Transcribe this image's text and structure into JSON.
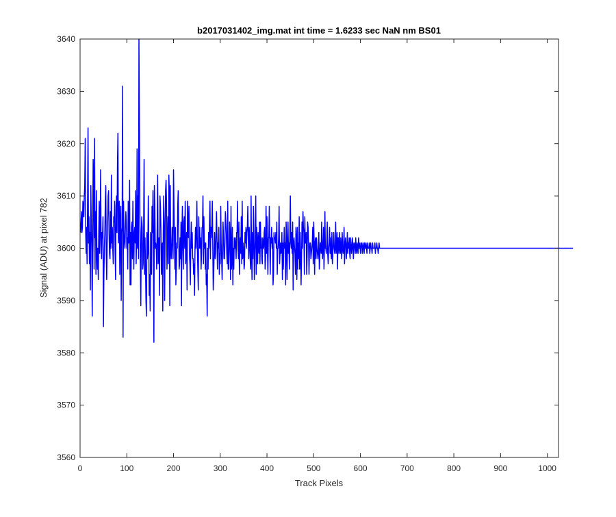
{
  "chart_data": {
    "type": "line",
    "title": "b2017031402_img.mat int time = 1.6233 sec  NaN nm BS01",
    "xlabel": "Track Pixels",
    "ylabel": "Signal (ADU) at pixel 782",
    "xlim": [
      0,
      1024
    ],
    "ylim": [
      3560,
      3640
    ],
    "xticks": [
      0,
      100,
      200,
      300,
      400,
      500,
      600,
      700,
      800,
      900,
      1000
    ],
    "yticks": [
      3560,
      3570,
      3580,
      3590,
      3600,
      3610,
      3620,
      3630,
      3640
    ],
    "grid": false,
    "legend": null,
    "series": [
      {
        "color": "#0000ff",
        "x_start": 1,
        "x_step": 1,
        "values": [
          3603,
          3605,
          3607,
          3603,
          3604,
          3609,
          3608,
          3606,
          3610,
          3612,
          3621,
          3603,
          3599,
          3604,
          3597,
          3608,
          3623,
          3601,
          3606,
          3597,
          3603,
          3592,
          3612,
          3605,
          3600,
          3587,
          3603,
          3617,
          3611,
          3596,
          3621,
          3602,
          3607,
          3595,
          3611,
          3599,
          3596,
          3600,
          3594,
          3603,
          3609,
          3599,
          3604,
          3615,
          3601,
          3598,
          3603,
          3602,
          3606,
          3585,
          3595,
          3600,
          3603,
          3609,
          3612,
          3599,
          3594,
          3601,
          3605,
          3610,
          3611,
          3603,
          3599,
          3598,
          3607,
          3600,
          3614,
          3601,
          3604,
          3600,
          3597,
          3606,
          3605,
          3609,
          3599,
          3594,
          3608,
          3610,
          3603,
          3616,
          3622,
          3601,
          3604,
          3609,
          3595,
          3605,
          3608,
          3590,
          3603,
          3604,
          3631,
          3583,
          3609,
          3603,
          3601,
          3600,
          3604,
          3607,
          3605,
          3600,
          3602,
          3596,
          3609,
          3601,
          3601,
          3613,
          3593,
          3603,
          3593,
          3604,
          3605,
          3598,
          3609,
          3601,
          3596,
          3603,
          3604,
          3601,
          3611,
          3597,
          3602,
          3619,
          3600,
          3610,
          3598,
          3640,
          3625,
          3606,
          3597,
          3589,
          3603,
          3606,
          3604,
          3596,
          3597,
          3603,
          3617,
          3595,
          3602,
          3597,
          3590,
          3587,
          3603,
          3598,
          3599,
          3610,
          3602,
          3591,
          3595,
          3588,
          3603,
          3602,
          3595,
          3608,
          3603,
          3611,
          3598,
          3582,
          3612,
          3608,
          3600,
          3601,
          3600,
          3596,
          3604,
          3614,
          3597,
          3600,
          3602,
          3591,
          3610,
          3608,
          3604,
          3595,
          3600,
          3601,
          3588,
          3603,
          3610,
          3605,
          3590,
          3602,
          3611,
          3613,
          3609,
          3596,
          3601,
          3606,
          3597,
          3614,
          3611,
          3589,
          3612,
          3600,
          3598,
          3600,
          3604,
          3602,
          3598,
          3615,
          3608,
          3601,
          3596,
          3604,
          3593,
          3596,
          3601,
          3600,
          3608,
          3611,
          3604,
          3596,
          3597,
          3602,
          3598,
          3605,
          3589,
          3603,
          3608,
          3600,
          3596,
          3605,
          3606,
          3600,
          3609,
          3597,
          3600,
          3603,
          3592,
          3609,
          3605,
          3602,
          3608,
          3599,
          3597,
          3593,
          3601,
          3605,
          3600,
          3603,
          3598,
          3598,
          3595,
          3597,
          3591,
          3600,
          3604,
          3600,
          3603,
          3609,
          3600,
          3596,
          3592,
          3606,
          3600,
          3604,
          3600,
          3602,
          3596,
          3599,
          3604,
          3604,
          3610,
          3597,
          3606,
          3600,
          3601,
          3596,
          3601,
          3593,
          3595,
          3587,
          3600,
          3596,
          3603,
          3600,
          3605,
          3609,
          3598,
          3604,
          3602,
          3604,
          3609,
          3601,
          3592,
          3595,
          3600,
          3603,
          3598,
          3599,
          3603,
          3607,
          3602,
          3596,
          3601,
          3600,
          3604,
          3595,
          3599,
          3597,
          3608,
          3601,
          3598,
          3594,
          3600,
          3605,
          3602,
          3598,
          3598,
          3601,
          3607,
          3605,
          3603,
          3599,
          3597,
          3609,
          3596,
          3596,
          3600,
          3605,
          3601,
          3594,
          3608,
          3596,
          3598,
          3604,
          3593,
          3600,
          3596,
          3602,
          3600,
          3602,
          3600,
          3598,
          3603,
          3603,
          3609,
          3600,
          3598,
          3605,
          3595,
          3600,
          3602,
          3599,
          3606,
          3597,
          3609,
          3598,
          3601,
          3600,
          3596,
          3597,
          3603,
          3601,
          3604,
          3600,
          3603,
          3604,
          3608,
          3602,
          3598,
          3604,
          3601,
          3598,
          3596,
          3610,
          3599,
          3594,
          3603,
          3598,
          3608,
          3603,
          3594,
          3599,
          3602,
          3610,
          3595,
          3604,
          3601,
          3597,
          3603,
          3600,
          3599,
          3605,
          3597,
          3605,
          3600,
          3602,
          3598,
          3597,
          3602,
          3600,
          3600,
          3603,
          3604,
          3596,
          3598,
          3608,
          3599,
          3606,
          3600,
          3595,
          3602,
          3602,
          3608,
          3601,
          3595,
          3602,
          3601,
          3604,
          3600,
          3602,
          3593,
          3595,
          3603,
          3602,
          3602,
          3601,
          3603,
          3600,
          3605,
          3595,
          3600,
          3600,
          3602,
          3608,
          3597,
          3599,
          3601,
          3599,
          3600,
          3603,
          3594,
          3601,
          3596,
          3600,
          3604,
          3600,
          3601,
          3593,
          3605,
          3602,
          3594,
          3601,
          3605,
          3599,
          3601,
          3596,
          3603,
          3610,
          3601,
          3600,
          3603,
          3599,
          3605,
          3592,
          3601,
          3602,
          3600,
          3599,
          3595,
          3604,
          3602,
          3594,
          3604,
          3596,
          3601,
          3598,
          3606,
          3596,
          3603,
          3599,
          3593,
          3598,
          3605,
          3600,
          3607,
          3604,
          3603,
          3595,
          3606,
          3601,
          3601,
          3603,
          3595,
          3599,
          3605,
          3604,
          3601,
          3595,
          3600,
          3601,
          3601,
          3598,
          3599,
          3600,
          3601,
          3604,
          3597,
          3605,
          3601,
          3595,
          3601,
          3602,
          3598,
          3602,
          3600,
          3599,
          3598,
          3600,
          3603,
          3596,
          3598,
          3601,
          3601,
          3599,
          3605,
          3600,
          3598,
          3601,
          3604,
          3596,
          3600,
          3607,
          3600,
          3600,
          3599,
          3601,
          3605,
          3599,
          3597,
          3600,
          3601,
          3604,
          3599,
          3602,
          3599,
          3598,
          3603,
          3597,
          3599,
          3601,
          3603,
          3600,
          3599,
          3600,
          3605,
          3599,
          3600,
          3603,
          3596,
          3602,
          3602,
          3599,
          3603,
          3600,
          3599,
          3602,
          3600,
          3598,
          3603,
          3600,
          3599,
          3600,
          3604,
          3597,
          3600,
          3602,
          3601,
          3598,
          3600,
          3603,
          3599,
          3601,
          3600,
          3602,
          3599,
          3598,
          3602,
          3601,
          3599,
          3600,
          3602,
          3600,
          3598,
          3601,
          3601,
          3600,
          3599,
          3602,
          3600,
          3599,
          3601,
          3600,
          3599,
          3602,
          3600,
          3600,
          3601,
          3599,
          3600,
          3601,
          3601,
          3599,
          3600,
          3601,
          3600,
          3599,
          3601,
          3600,
          3600,
          3601,
          3600,
          3599,
          3601,
          3600,
          3600,
          3600,
          3601,
          3599,
          3600,
          3601,
          3600,
          3600,
          3599,
          3601,
          3600,
          3600,
          3600,
          3600,
          3601,
          3599,
          3600,
          3600,
          3601,
          3600,
          3600,
          3599,
          3600,
          3601,
          3600,
          3600,
          3600,
          3600,
          3600,
          3600,
          3600,
          3600,
          3600,
          3600,
          3600,
          3600,
          3600,
          3600,
          3600,
          3600,
          3600,
          3600,
          3600,
          3600,
          3600,
          3600,
          3600,
          3600,
          3600,
          3600,
          3600,
          3600,
          3600,
          3600,
          3600,
          3600,
          3600,
          3600,
          3600,
          3600,
          3600,
          3600,
          3600,
          3600,
          3600,
          3600,
          3600,
          3600,
          3600,
          3600,
          3600,
          3600,
          3600,
          3600,
          3600,
          3600,
          3600,
          3600,
          3600,
          3600,
          3600,
          3600,
          3600,
          3600,
          3600,
          3600,
          3600,
          3600,
          3600,
          3600,
          3600,
          3600,
          3600,
          3600,
          3600,
          3600,
          3600,
          3600,
          3600,
          3600,
          3600,
          3600,
          3600,
          3600,
          3600,
          3600,
          3600,
          3600,
          3600,
          3600,
          3600,
          3600,
          3600,
          3600,
          3600,
          3600,
          3600,
          3600,
          3600,
          3600,
          3600,
          3600,
          3600,
          3600,
          3600,
          3600,
          3600,
          3600,
          3600,
          3600,
          3600,
          3600,
          3600,
          3600,
          3600,
          3600,
          3600,
          3600,
          3600,
          3600,
          3600,
          3600,
          3600,
          3600,
          3600,
          3600,
          3600,
          3600,
          3600,
          3600,
          3600,
          3600,
          3600,
          3600,
          3600,
          3600,
          3600,
          3600,
          3600,
          3600,
          3600,
          3600,
          3600,
          3600,
          3600,
          3600,
          3600,
          3600,
          3600,
          3600,
          3600,
          3600,
          3600,
          3600,
          3600,
          3600,
          3600,
          3600,
          3600,
          3600,
          3600,
          3600,
          3600,
          3600,
          3600,
          3600,
          3600,
          3600,
          3600,
          3600,
          3600,
          3600,
          3600,
          3600,
          3600,
          3600,
          3600,
          3600,
          3600,
          3600,
          3600,
          3600,
          3600,
          3600,
          3600,
          3600,
          3600,
          3600,
          3600,
          3600,
          3600,
          3600,
          3600,
          3600,
          3600,
          3600,
          3600,
          3600,
          3600,
          3600,
          3600,
          3600,
          3600,
          3600,
          3600,
          3600,
          3600,
          3600,
          3600,
          3600,
          3600,
          3600,
          3600,
          3600,
          3600,
          3600,
          3600,
          3600,
          3600,
          3600,
          3600,
          3600,
          3600,
          3600,
          3600,
          3600,
          3600,
          3600,
          3600,
          3600,
          3600,
          3600,
          3600,
          3600,
          3600,
          3600,
          3600,
          3600,
          3600,
          3600,
          3600,
          3600,
          3600,
          3600,
          3600,
          3600,
          3600,
          3600,
          3600,
          3600,
          3600,
          3600,
          3600,
          3600,
          3600,
          3600,
          3600,
          3600,
          3600,
          3600,
          3600,
          3600,
          3600,
          3600,
          3600,
          3600,
          3600,
          3600,
          3600,
          3600,
          3600,
          3600,
          3600,
          3600,
          3600,
          3600,
          3600,
          3600,
          3600,
          3600,
          3600,
          3600,
          3600,
          3600,
          3600,
          3600,
          3600,
          3600,
          3600,
          3600,
          3600,
          3600,
          3600,
          3600,
          3600,
          3600,
          3600,
          3600,
          3600,
          3600,
          3600,
          3600,
          3600,
          3600,
          3600,
          3600,
          3600,
          3600,
          3600,
          3600,
          3600,
          3600,
          3600,
          3600,
          3600,
          3600,
          3600,
          3600,
          3600,
          3600,
          3600,
          3600,
          3600,
          3600,
          3600,
          3600,
          3600,
          3600,
          3600,
          3600,
          3600,
          3600,
          3600,
          3600,
          3600,
          3600,
          3600,
          3600,
          3600,
          3600,
          3600,
          3600,
          3600,
          3600,
          3600,
          3600,
          3600,
          3600,
          3600,
          3600,
          3600,
          3600,
          3600,
          3600,
          3600,
          3600,
          3600,
          3600,
          3600,
          3600,
          3600,
          3600,
          3600,
          3600,
          3600,
          3600,
          3600,
          3600,
          3600,
          3600,
          3600,
          3600,
          3600,
          3600,
          3600,
          3600,
          3600,
          3600,
          3600,
          3600,
          3600,
          3600,
          3600,
          3600,
          3600,
          3600,
          3600,
          3600,
          3600,
          3600,
          3600,
          3600,
          3600,
          3600,
          3600,
          3600,
          3600,
          3600,
          3600,
          3600,
          3600,
          3600,
          3600,
          3600,
          3600,
          3600,
          3600,
          3600,
          3600,
          3600,
          3600,
          3600,
          3600,
          3600,
          3600,
          3600,
          3600,
          3600,
          3600
        ]
      }
    ]
  }
}
